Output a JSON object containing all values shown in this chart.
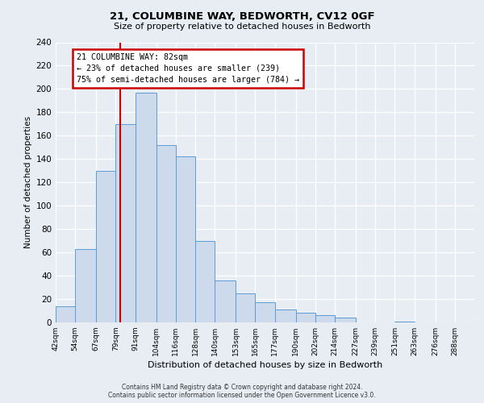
{
  "title1": "21, COLUMBINE WAY, BEDWORTH, CV12 0GF",
  "title2": "Size of property relative to detached houses in Bedworth",
  "xlabel": "Distribution of detached houses by size in Bedworth",
  "ylabel": "Number of detached properties",
  "bin_edges": [
    42,
    54,
    67,
    79,
    91,
    104,
    116,
    128,
    140,
    153,
    165,
    177,
    190,
    202,
    214,
    227,
    239,
    251,
    263,
    276,
    288,
    300
  ],
  "bar_heights": [
    14,
    63,
    130,
    170,
    197,
    152,
    142,
    70,
    36,
    25,
    17,
    11,
    8,
    6,
    4,
    0,
    0,
    1,
    0,
    0,
    0
  ],
  "bar_facecolor": "#cddaeb",
  "bar_edgecolor": "#5b9bd5",
  "background_color": "#e8edf4",
  "vline_x": 82,
  "vline_color": "#cc0000",
  "annotation_title": "21 COLUMBINE WAY: 82sqm",
  "annotation_line1": "← 23% of detached houses are smaller (239)",
  "annotation_line2": "75% of semi-detached houses are larger (784) →",
  "annotation_box_facecolor": "#ffffff",
  "annotation_box_edgecolor": "#cc0000",
  "ylim": [
    0,
    240
  ],
  "yticks": [
    0,
    20,
    40,
    60,
    80,
    100,
    120,
    140,
    160,
    180,
    200,
    220,
    240
  ],
  "xtick_labels": [
    "42sqm",
    "54sqm",
    "67sqm",
    "79sqm",
    "91sqm",
    "104sqm",
    "116sqm",
    "128sqm",
    "140sqm",
    "153sqm",
    "165sqm",
    "177sqm",
    "190sqm",
    "202sqm",
    "214sqm",
    "227sqm",
    "239sqm",
    "251sqm",
    "263sqm",
    "276sqm",
    "288sqm"
  ],
  "footnote1": "Contains HM Land Registry data © Crown copyright and database right 2024.",
  "footnote2": "Contains public sector information licensed under the Open Government Licence v3.0."
}
